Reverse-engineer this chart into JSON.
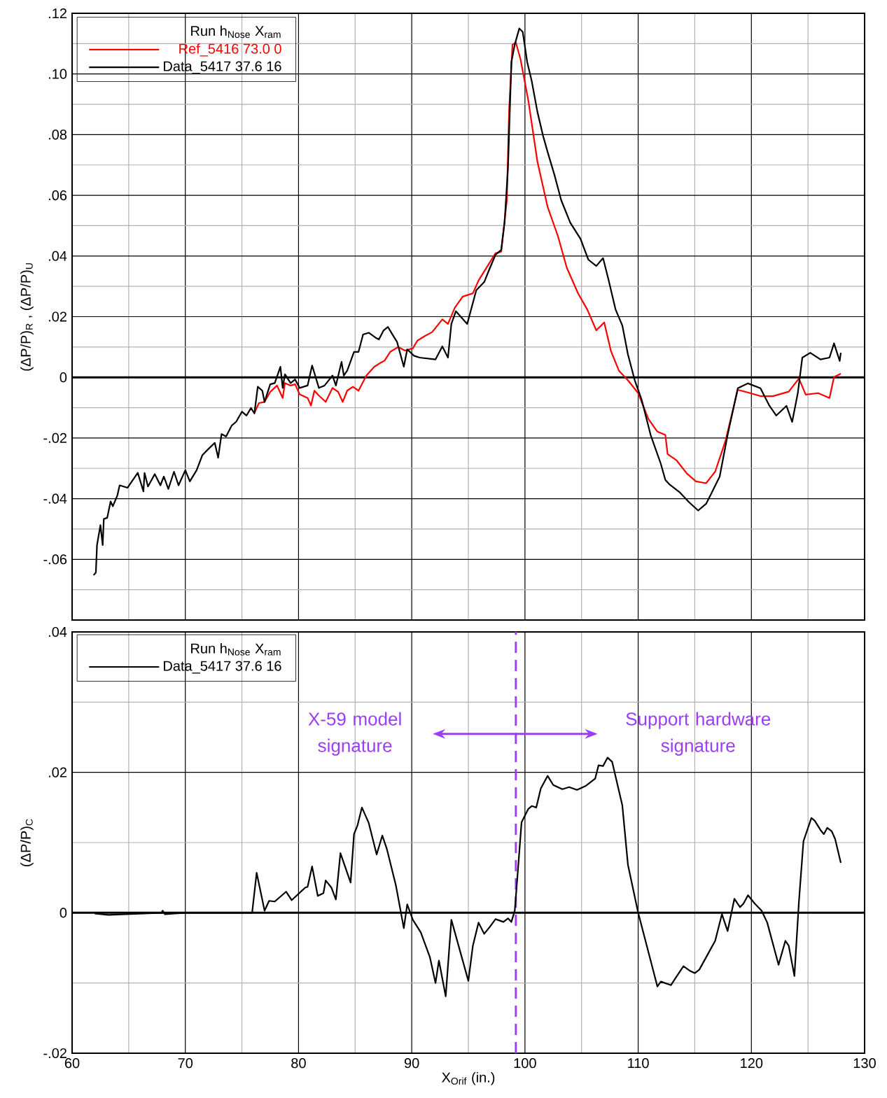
{
  "chart_data": [
    {
      "type": "line",
      "ylabel": "(ΔP/P)$_{R}$ , (ΔP/P)$_{U}$",
      "legend_title": "Run   h$_{Nose}$   X$_{ram}$",
      "legend": "top left",
      "grid": true,
      "tick_labels": "y",
      "xlim": [
        60,
        130
      ],
      "ylim": [
        -0.08,
        0.12
      ],
      "xticks": [
        60,
        70,
        80,
        90,
        100,
        110,
        120,
        130,
        {
          "value": 65,
          "label": null
        },
        {
          "value": 75,
          "label": null
        },
        {
          "value": 85,
          "label": null
        },
        {
          "value": 95,
          "label": null
        },
        {
          "value": 105,
          "label": null
        },
        {
          "value": 115,
          "label": null
        },
        {
          "value": 125,
          "label": null
        }
      ],
      "yticks": [
        {
          "value": -0.06,
          "label": "-.06"
        },
        {
          "value": -0.04,
          "label": "-.04"
        },
        {
          "value": -0.02,
          "label": "-.02"
        },
        0,
        {
          "value": 0.02,
          "label": ".02"
        },
        {
          "value": 0.04,
          "label": ".04"
        },
        {
          "value": 0.06,
          "label": ".06"
        },
        {
          "value": 0.08,
          "label": ".08"
        },
        {
          "value": 0.1,
          "label": ".10"
        },
        {
          "value": 0.12,
          "label": ".12"
        },
        {
          "value": -0.07,
          "label": null
        },
        {
          "value": -0.05,
          "label": null
        },
        {
          "value": -0.03,
          "label": null
        },
        {
          "value": -0.01,
          "label": null
        },
        {
          "value": 0.01,
          "label": null
        },
        {
          "value": 0.03,
          "label": null
        },
        {
          "value": 0.05,
          "label": null
        },
        {
          "value": 0.07,
          "label": null
        },
        {
          "value": 0.09,
          "label": null
        },
        {
          "value": 0.11,
          "label": null
        }
      ],
      "ref_lines": [
        {
          "axis": "y",
          "value": 0,
          "color": "#000000"
        }
      ],
      "series": [
        {
          "name": "Ref_5416  73.0     0",
          "color": "#ff0000",
          "x": [
            76.1,
            76.5,
            77.0,
            77.5,
            78.1,
            78.6,
            78.8,
            79.3,
            79.7,
            80.1,
            80.8,
            81.1,
            81.4,
            81.8,
            82.4,
            83.0,
            83.5,
            83.9,
            84.3,
            84.8,
            85.3,
            86.0,
            86.7,
            87.2,
            87.6,
            88.1,
            88.8,
            89.4,
            90.1,
            90.5,
            91.2,
            91.8,
            92.7,
            93.2,
            93.8,
            94.5,
            95.4,
            95.9,
            96.6,
            97.4,
            97.9,
            98.4,
            98.6,
            98.9,
            99.2,
            99.6,
            100.3,
            101.1,
            102.0,
            102.9,
            103.7,
            104.7,
            105.5,
            106.3,
            107.0,
            107.6,
            108.3,
            109.1,
            110.0,
            110.9,
            111.7,
            112.4,
            112.6,
            113.4,
            114.3,
            115.1,
            116.0,
            116.8,
            117.7,
            118.8,
            119.9,
            120.8,
            121.9,
            123.3,
            124.2,
            124.8,
            125.9,
            126.9,
            127.3,
            127.9
          ],
          "values": [
            -0.0118,
            -0.0085,
            -0.0081,
            -0.0048,
            -0.0027,
            -0.0068,
            -0.0019,
            -0.0027,
            -0.0023,
            -0.0056,
            -0.0068,
            -0.0093,
            -0.0044,
            -0.006,
            -0.0081,
            -0.0035,
            -0.0048,
            -0.0081,
            -0.0044,
            -0.0031,
            -0.0044,
            0.0006,
            0.0035,
            0.0047,
            0.0055,
            0.0084,
            0.01,
            0.0088,
            0.0096,
            0.0121,
            0.0137,
            0.0149,
            0.0191,
            0.0176,
            0.0229,
            0.0266,
            0.0277,
            0.0319,
            0.0361,
            0.0409,
            0.0414,
            0.0584,
            0.088,
            0.1097,
            0.1103,
            0.105,
            0.0912,
            0.0711,
            0.0562,
            0.0467,
            0.0361,
            0.0276,
            0.0224,
            0.0155,
            0.0181,
            0.0086,
            0.0022,
            -0.001,
            -0.0052,
            -0.0137,
            -0.0179,
            -0.019,
            -0.0253,
            -0.0274,
            -0.0317,
            -0.0343,
            -0.0349,
            -0.0311,
            -0.0211,
            -0.0041,
            -0.0052,
            -0.0062,
            -0.0062,
            -0.0047,
            -0.0004,
            -0.0057,
            -0.0052,
            -0.0068,
            0.0001,
            0.0012
          ]
        },
        {
          "name": "Data_5417 37.6    16",
          "color": "#000000",
          "x": [
            61.9,
            62.1,
            62.2,
            62.5,
            62.7,
            62.8,
            63.1,
            63.4,
            63.6,
            64.0,
            64.2,
            64.9,
            65.8,
            66.3,
            66.4,
            66.7,
            67.3,
            67.8,
            68.1,
            68.5,
            69.0,
            69.4,
            70.0,
            70.4,
            71.0,
            71.5,
            71.8,
            72.6,
            72.9,
            73.2,
            73.6,
            74.1,
            74.5,
            75.0,
            75.4,
            75.8,
            76.1,
            76.4,
            76.8,
            77.0,
            77.5,
            77.9,
            78.4,
            78.6,
            78.8,
            79.3,
            79.7,
            80.1,
            80.8,
            81.2,
            81.8,
            82.3,
            83.0,
            83.3,
            83.8,
            84.0,
            84.3,
            84.9,
            85.3,
            85.7,
            86.2,
            86.8,
            87.1,
            87.5,
            87.9,
            88.3,
            88.7,
            89.3,
            89.6,
            90.2,
            90.7,
            92.1,
            92.7,
            93.2,
            93.5,
            93.9,
            94.4,
            94.9,
            95.7,
            96.4,
            96.8,
            97.4,
            97.9,
            98.2,
            98.5,
            98.8,
            99.1,
            99.5,
            99.8,
            100.2,
            100.6,
            101.1,
            101.6,
            102.0,
            102.6,
            103.2,
            104.0,
            104.9,
            105.6,
            106.3,
            106.9,
            107.4,
            108.0,
            108.6,
            109.1,
            109.7,
            110.3,
            111.1,
            112.0,
            112.4,
            112.8,
            113.7,
            114.5,
            115.3,
            116.0,
            116.5,
            117.2,
            117.9,
            118.8,
            119.7,
            120.8,
            121.6,
            122.2,
            123.1,
            123.6,
            124.1,
            124.5,
            125.2,
            126.1,
            126.9,
            127.3,
            127.8,
            127.9
          ],
          "values": [
            -0.0652,
            -0.0643,
            -0.0553,
            -0.0487,
            -0.0553,
            -0.0467,
            -0.0463,
            -0.0409,
            -0.0425,
            -0.0389,
            -0.0356,
            -0.0364,
            -0.0315,
            -0.0376,
            -0.0315,
            -0.036,
            -0.0319,
            -0.0356,
            -0.0327,
            -0.0368,
            -0.0311,
            -0.0356,
            -0.0306,
            -0.0343,
            -0.0306,
            -0.0257,
            -0.0245,
            -0.0216,
            -0.0265,
            -0.0187,
            -0.0195,
            -0.0159,
            -0.0146,
            -0.0113,
            -0.0126,
            -0.0101,
            -0.0119,
            -0.0031,
            -0.0044,
            -0.0081,
            -0.0023,
            -0.0019,
            0.0035,
            -0.0035,
            0.001,
            -0.0019,
            -0.0007,
            -0.0035,
            -0.0027,
            0.0039,
            -0.0035,
            -0.0027,
            0.0006,
            -0.0027,
            0.0051,
            0.0006,
            0.0022,
            0.0084,
            0.0084,
            0.0141,
            0.0147,
            0.0131,
            0.0125,
            0.0154,
            0.0166,
            0.0141,
            0.0117,
            0.0035,
            0.0092,
            0.0071,
            0.0065,
            0.0059,
            0.0102,
            0.0065,
            0.0176,
            0.0218,
            0.0197,
            0.0176,
            0.0287,
            0.0314,
            0.0351,
            0.0404,
            0.042,
            0.051,
            0.069,
            0.1039,
            0.1097,
            0.115,
            0.1139,
            0.1039,
            0.0976,
            0.0875,
            0.0796,
            0.0743,
            0.0668,
            0.0584,
            0.051,
            0.0457,
            0.0388,
            0.0367,
            0.0393,
            0.0319,
            0.0224,
            0.0171,
            0.0075,
            -0.001,
            -0.0073,
            -0.019,
            -0.0285,
            -0.0338,
            -0.0354,
            -0.038,
            -0.0412,
            -0.0439,
            -0.0417,
            -0.038,
            -0.0327,
            -0.019,
            -0.0036,
            -0.002,
            -0.0036,
            -0.0094,
            -0.0126,
            -0.0094,
            -0.0147,
            -0.0052,
            0.0065,
            0.0081,
            0.0059,
            0.0065,
            0.0112,
            0.0054,
            0.0081
          ]
        }
      ]
    },
    {
      "type": "line",
      "xlabel": "X$_{Orif}$ (in.)",
      "ylabel": "(ΔP/P)$_{C}$",
      "legend_title": "Run   h$_{Nose}$   X$_{ram}$",
      "legend": "top left",
      "grid": true,
      "annotations": [
        "X-59 model signature",
        "Support hardware signature"
      ],
      "xlim": [
        60,
        130
      ],
      "ylim": [
        -0.02,
        0.04
      ],
      "xticks": [
        60,
        70,
        80,
        90,
        100,
        110,
        120,
        130,
        {
          "value": 65,
          "label": null
        },
        {
          "value": 75,
          "label": null
        },
        {
          "value": 85,
          "label": null
        },
        {
          "value": 95,
          "label": null
        },
        {
          "value": 105,
          "label": null
        },
        {
          "value": 115,
          "label": null
        },
        {
          "value": 125,
          "label": null
        }
      ],
      "yticks": [
        {
          "value": -0.02,
          "label": "-.02"
        },
        0,
        {
          "value": 0.02,
          "label": ".02"
        },
        {
          "value": 0.04,
          "label": ".04"
        },
        {
          "value": -0.01,
          "label": null
        },
        {
          "value": 0.01,
          "label": null
        },
        {
          "value": 0.03,
          "label": null
        }
      ],
      "ref_lines": [
        {
          "axis": "y",
          "value": 0,
          "color": "#000000"
        },
        {
          "axis": "x",
          "value": 99.2,
          "color": "#9b3cff",
          "line_style": "dashed"
        }
      ],
      "series": [
        {
          "name": "Data_5417 37.6    16",
          "color": "#000000",
          "x": [
            62.0,
            63.2,
            64.7,
            67.9,
            68.0,
            68.2,
            70.1,
            75.9,
            76.3,
            77.0,
            77.4,
            77.9,
            78.9,
            79.4,
            80.6,
            80.8,
            81.2,
            81.7,
            82.2,
            82.4,
            82.9,
            83.3,
            83.7,
            84.6,
            84.9,
            85.2,
            85.6,
            86.2,
            86.9,
            87.4,
            87.8,
            88.6,
            89.3,
            89.6,
            90.1,
            90.8,
            91.6,
            92.1,
            92.4,
            93.0,
            93.5,
            95.0,
            95.4,
            95.9,
            96.4,
            96.9,
            97.4,
            98.1,
            98.5,
            98.8,
            99.1,
            99.3,
            99.7,
            100.3,
            100.6,
            101.0,
            101.4,
            102.0,
            102.5,
            103.3,
            103.9,
            104.6,
            105.4,
            106.2,
            106.5,
            106.9,
            107.3,
            107.7,
            108.6,
            109.1,
            110.0,
            111.7,
            112.0,
            112.9,
            113.3,
            114.0,
            114.6,
            115.0,
            115.4,
            116.8,
            117.4,
            117.9,
            118.5,
            119.0,
            119.3,
            119.7,
            120.3,
            120.9,
            121.4,
            122.4,
            123.0,
            123.3,
            123.8,
            124.2,
            124.6,
            125.3,
            125.6,
            126.1,
            126.4,
            126.7,
            127.1,
            127.4,
            127.9
          ],
          "values": [
            -0.0001,
            -0.0003,
            -0.0002,
            0,
            0.0003,
            -0.0002,
            0,
            0,
            0.0057,
            0.0003,
            0.0017,
            0.0016,
            0.003,
            0.0018,
            0.0036,
            0.0037,
            0.0066,
            0.0024,
            0.0028,
            0.0046,
            0.0036,
            0.0019,
            0.0085,
            0.0043,
            0.0112,
            0.0124,
            0.015,
            0.0128,
            0.0083,
            0.011,
            0.0091,
            0.0039,
            -0.0022,
            0.0012,
            -0.001,
            -0.0028,
            -0.0063,
            -0.01,
            -0.0068,
            -0.0119,
            -0.001,
            -0.0097,
            -0.0047,
            -0.0014,
            -0.003,
            -0.002,
            -0.0009,
            -0.0013,
            -0.0008,
            -0.0013,
            0.0003,
            0.0044,
            0.0129,
            0.0148,
            0.0152,
            0.015,
            0.0177,
            0.0195,
            0.0182,
            0.0176,
            0.0179,
            0.0175,
            0.0181,
            0.0191,
            0.021,
            0.0209,
            0.0221,
            0.0215,
            0.0153,
            0.0068,
            0,
            -0.0105,
            -0.0098,
            -0.0103,
            -0.0093,
            -0.0076,
            -0.0083,
            -0.0086,
            -0.0081,
            -0.004,
            -0.0002,
            -0.0026,
            0.002,
            0.0008,
            0.0013,
            0.0025,
            0.0013,
            0.0003,
            -0.0014,
            -0.0074,
            -0.004,
            -0.0047,
            -0.009,
            0.0016,
            0.0102,
            0.0135,
            0.0131,
            0.0118,
            0.0112,
            0.0121,
            0.0116,
            0.0105,
            0.0071
          ]
        }
      ]
    }
  ]
}
